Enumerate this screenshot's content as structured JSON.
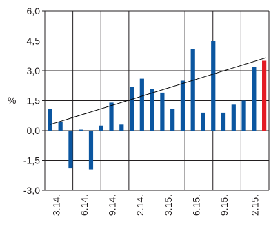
{
  "chart_data": {
    "type": "bar",
    "title": "",
    "xlabel": "",
    "ylabel": "%",
    "ylim": [
      -3.0,
      6.0
    ],
    "yticks": [
      "6,0",
      "4,5",
      "3,0",
      "1,5",
      "0,0",
      "-1,5",
      "-3,0"
    ],
    "ytick_values": [
      6.0,
      4.5,
      3.0,
      1.5,
      0.0,
      -1.5,
      -3.0
    ],
    "x_tick_labels": [
      "3.14.",
      "6.14.",
      "9.14.",
      "2.14.",
      "3.15.",
      "6.15.",
      "9.15.",
      "2.15."
    ],
    "grid": true,
    "legend": "none",
    "bar_values": [
      1.1,
      0.45,
      -1.9,
      0.05,
      -1.95,
      0.25,
      1.4,
      0.3,
      2.2,
      2.6,
      2.1,
      1.9,
      1.1,
      2.5,
      4.1,
      0.9,
      4.5,
      0.9,
      1.3,
      1.5,
      3.2,
      3.5
    ],
    "highlight_index": 21,
    "trendline": {
      "start": 0.3,
      "end": 3.65
    },
    "colors": {
      "bar": "#0b56a0",
      "highlight": "#e31b23",
      "trend": "#000000",
      "grid": "#231f20"
    }
  }
}
